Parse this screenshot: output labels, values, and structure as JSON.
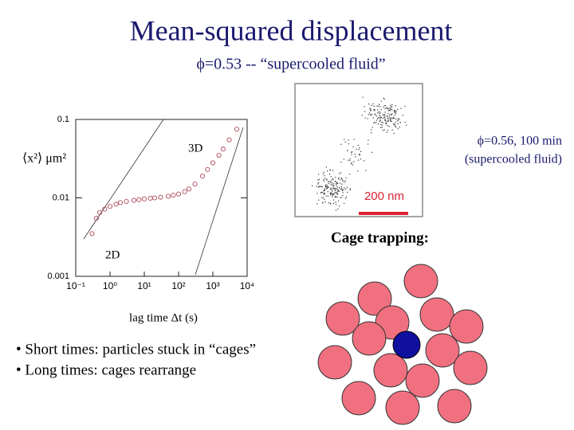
{
  "title": "Mean-squared displacement",
  "subtitle": "ϕ=0.53 -- “supercooled fluid”",
  "chart_data": {
    "type": "scatter",
    "y_label": "⟨x²⟩ μm²",
    "x_label": "lag time Δt (s)",
    "annotations": [
      "3D",
      "2D"
    ],
    "log_x": true,
    "log_y": true,
    "xlim": [
      0.1,
      10000
    ],
    "ylim": [
      0.001,
      0.1
    ],
    "xticks": [
      {
        "value": 0.1,
        "label": "10⁻¹"
      },
      {
        "value": 1,
        "label": "10⁰"
      },
      {
        "value": 10,
        "label": "10¹"
      },
      {
        "value": 100,
        "label": "10²"
      },
      {
        "value": 1000,
        "label": "10³"
      },
      {
        "value": 10000,
        "label": "10⁴"
      }
    ],
    "yticks": [
      0.001,
      0.01,
      0.1
    ],
    "series": [
      {
        "name": "MSD",
        "color": "#b04a5a",
        "x": [
          0.3,
          0.4,
          0.5,
          0.7,
          1,
          1.5,
          2,
          3,
          5,
          7,
          10,
          15,
          20,
          30,
          50,
          70,
          100,
          150,
          200,
          300,
          500,
          700,
          1000,
          1500,
          2000,
          3000,
          5000
        ],
        "values": [
          0.0035,
          0.0055,
          0.0065,
          0.0072,
          0.0078,
          0.0083,
          0.0087,
          0.009,
          0.0093,
          0.0095,
          0.0097,
          0.0099,
          0.01,
          0.0102,
          0.0105,
          0.0108,
          0.0112,
          0.012,
          0.013,
          0.015,
          0.019,
          0.023,
          0.028,
          0.035,
          0.042,
          0.055,
          0.075
        ]
      }
    ]
  },
  "inset": {
    "caption_line1": "ϕ=0.56, 100 min",
    "caption_line2": "(supercooled fluid)",
    "scale_bar": "200 nm"
  },
  "cage_heading": "Cage trapping:",
  "bullets": [
    "• Short times: particles stuck in “cages”",
    "• Long times: cages rearrange"
  ]
}
